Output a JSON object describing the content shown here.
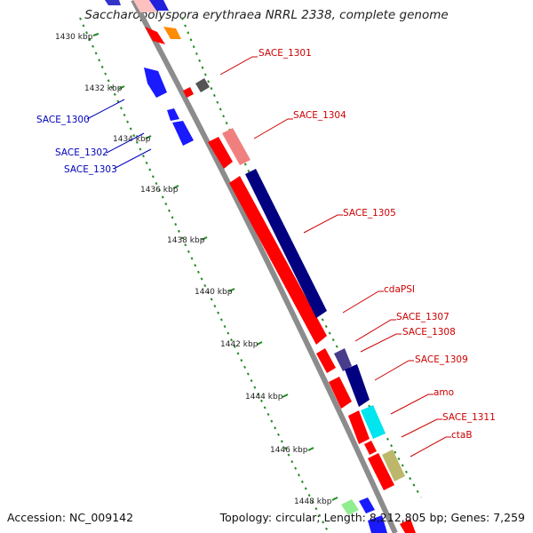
{
  "title": "Saccharopolyspora erythraea NRRL 2338, complete genome",
  "footer": {
    "accession": "Accession: NC_009142",
    "topology": "Topology: circular; Length: 8,212,805 bp; Genes: 7,259"
  },
  "colors": {
    "forward_label": "#cc0000",
    "reverse_label": "#0000bb",
    "backbone": "#8c8c8c",
    "tick_line": "#228b22"
  },
  "ticks": [
    "1430 kbp",
    "1432 kbp",
    "1434 kbp",
    "1436 kbp",
    "1438 kbp",
    "1440 kbp",
    "1442 kbp",
    "1444 kbp",
    "1446 kbp",
    "1448 kbp"
  ],
  "gene_labels_forward": [
    "SACE_1301",
    "SACE_1304",
    "SACE_1305",
    "cdaPSI",
    "SACE_1307",
    "SACE_1308",
    "SACE_1309",
    "amo",
    "SACE_1311",
    "ctaB"
  ],
  "gene_labels_reverse": [
    "SACE_1300",
    "SACE_1302",
    "SACE_1303"
  ]
}
